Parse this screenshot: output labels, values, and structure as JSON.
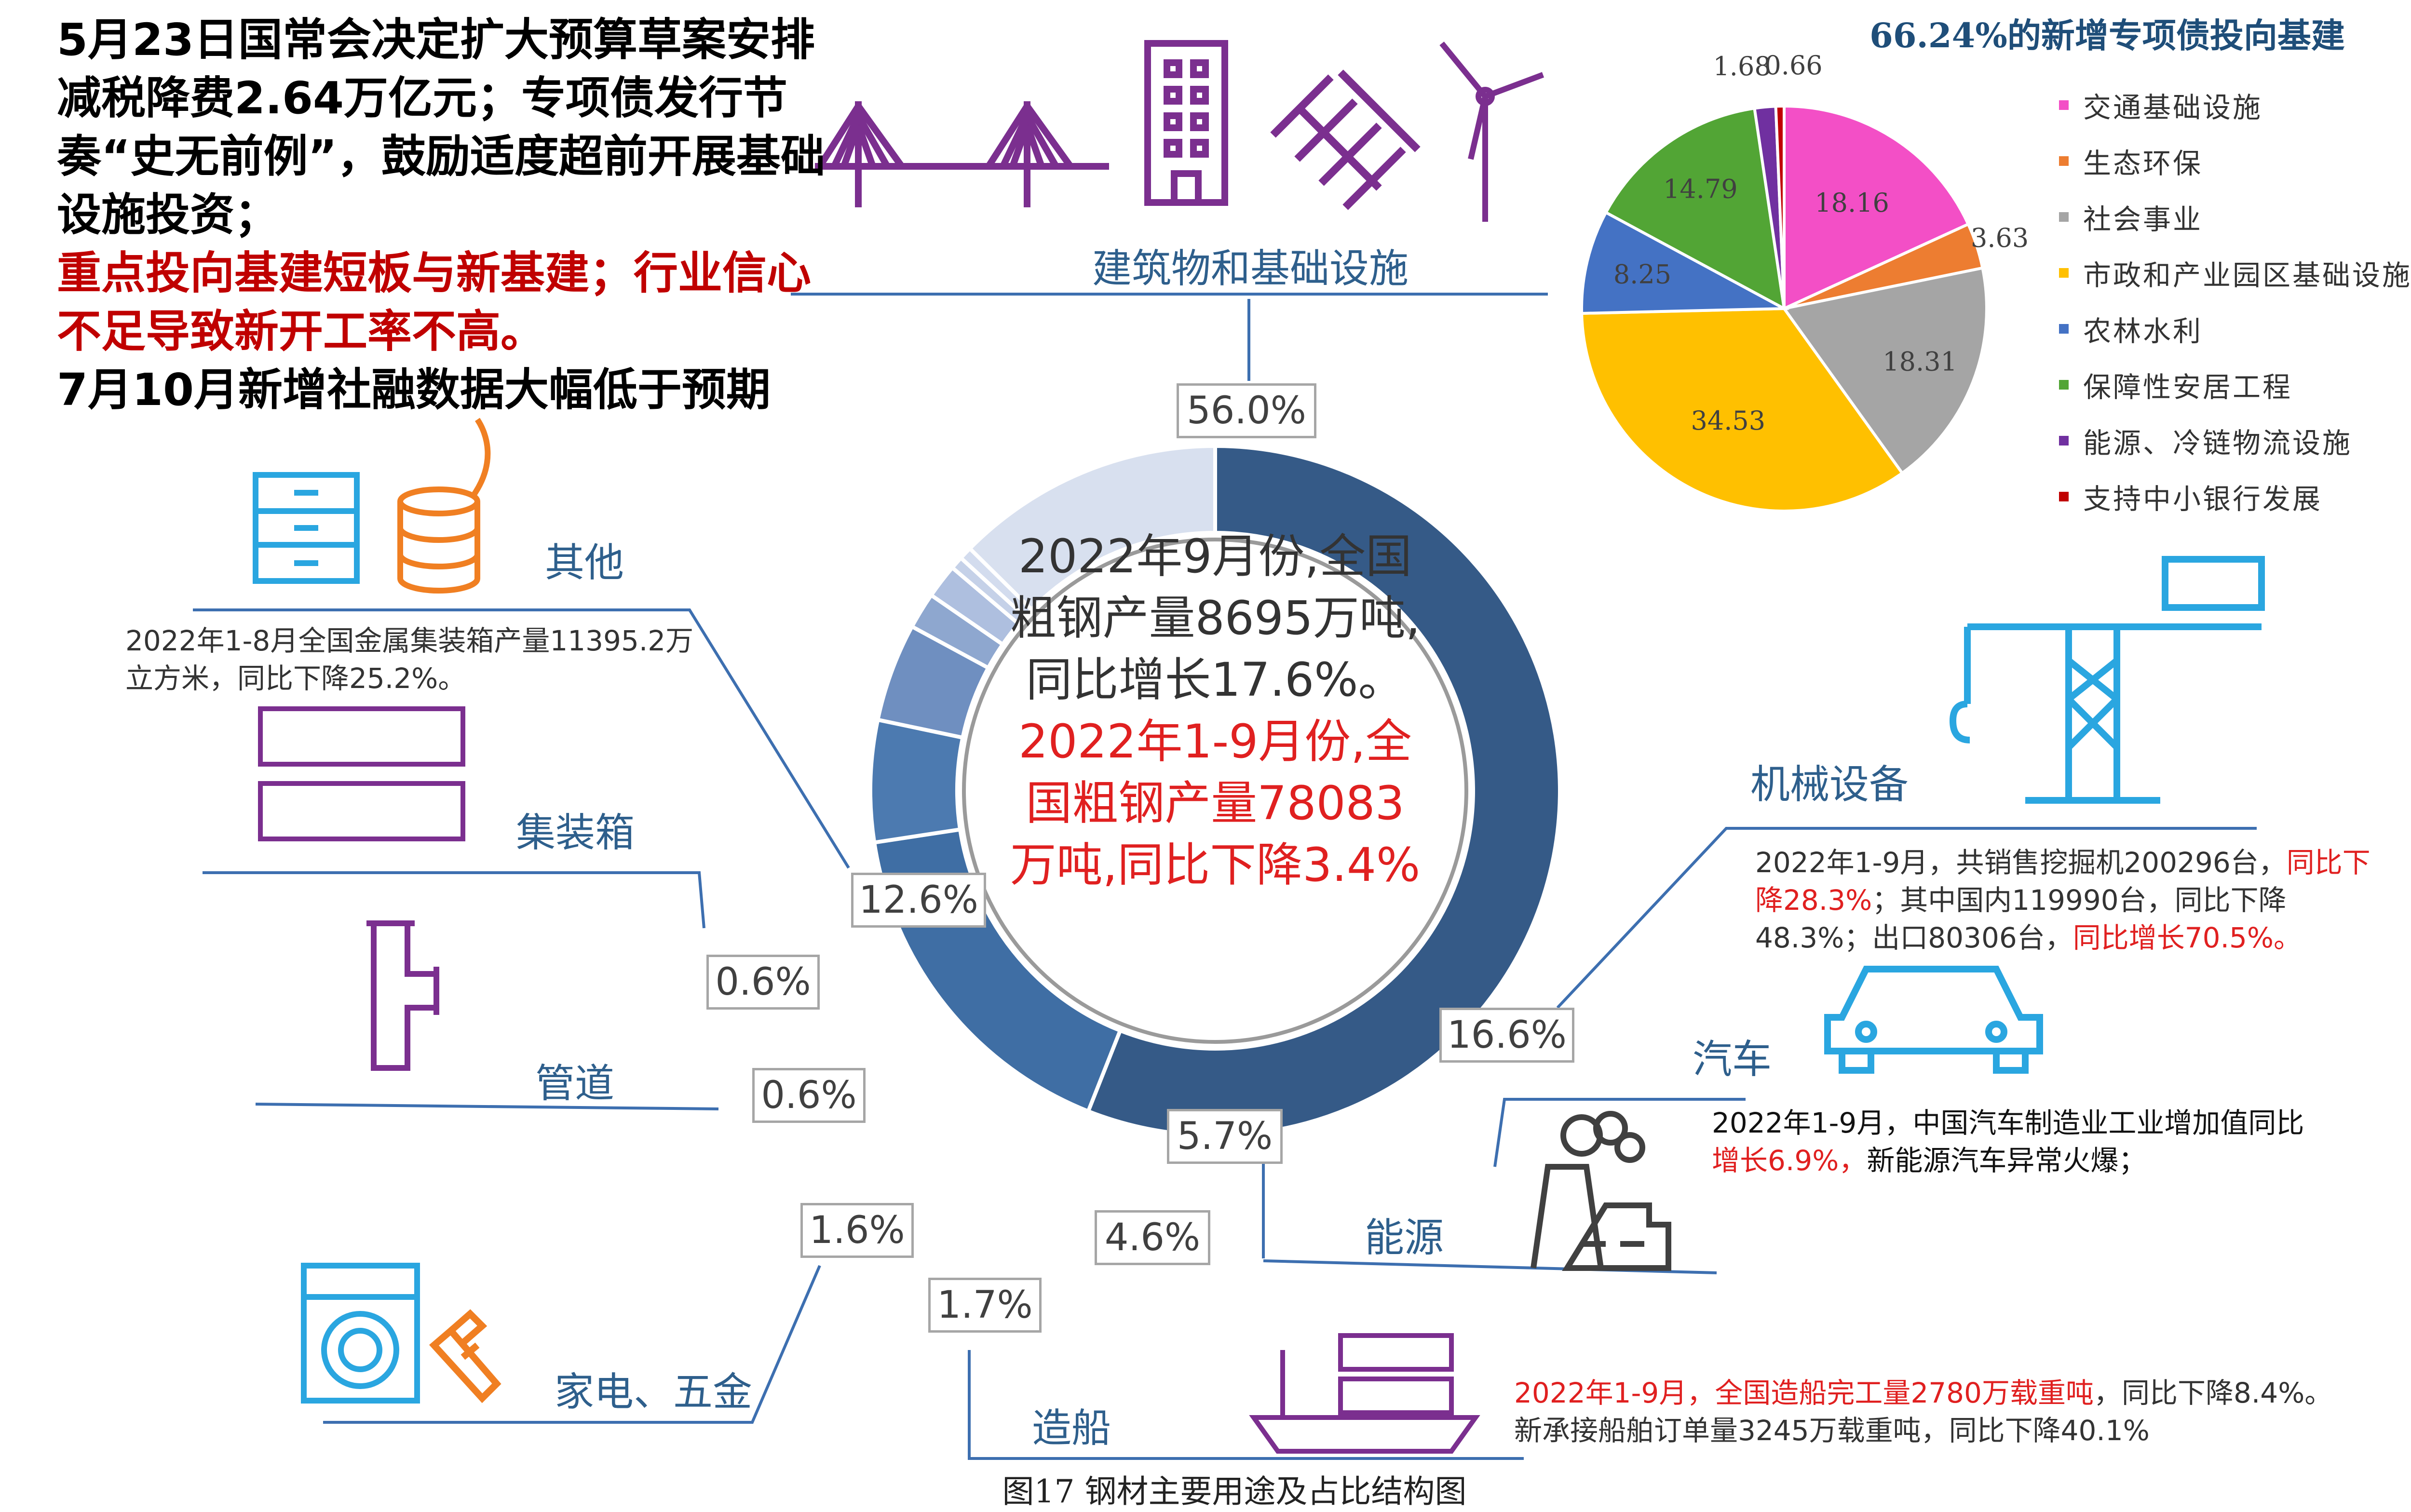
{
  "headline": {
    "black": "5月23日国常会决定扩大预算草案安排减税降费2.64万亿元；专项债发行节奏“史无前例”，鼓励适度超前开展基础设施投资；",
    "red": "重点投向基建短板与新基建；行业信心不足导致新开工率不高。",
    "black2": "7月10月新增社融数据大幅低于预期"
  },
  "pie_title": "66.24%的新增专项债投向基建",
  "center_text": {
    "line_a": "2022年9月份,全国粗钢产量8695万吨,同比增长17.6%。",
    "line_b": "2022年1-9月份,全国粗钢产量78083万吨,同比下降3.4%"
  },
  "categories": {
    "construction": "建筑物和基础设施",
    "machinery": "机械设备",
    "auto": "汽车",
    "energy": "能源",
    "shipbuilding": "造船",
    "appliances": "家电、五金",
    "pipes": "管道",
    "containers": "集装箱",
    "others": "其他"
  },
  "boxes": {
    "construction": "56.0%",
    "machinery": "16.6%",
    "auto": "5.7%",
    "energy": "4.6%",
    "shipbuilding": "1.7%",
    "appliances": "1.6%",
    "pipes": "0.6%",
    "containers": "0.6%",
    "others": "12.6%"
  },
  "notes": {
    "containers_text": "2022年1-8月全国金属集装箱产量11395.2万立方米，同比下降25.2%。",
    "machinery": {
      "p1": "2022年1-9月，共销售挖掘机200296台，",
      "p1r": "同比下降28.3%",
      "p2": "；其中国内119990台，同比下降48.3%；出口80306台，",
      "p2r": "同比增长70.5%。"
    },
    "auto": {
      "p1": "2022年1-9月，中国汽车制造业工业增加值同比",
      "p1r": "增长6.9%，",
      "p2": "新能源汽车异常火爆；"
    },
    "ship": {
      "p1r": "2022年1-9月，全国造船完工量2780万载重吨",
      "p1": "，同比下降8.4%。",
      "p2": "新承接船舶订单量3245万载重吨，同比下降40.1%"
    }
  },
  "caption": "图17 钢材主要用途及占比结构图",
  "colors": {
    "donut": [
      "#355a87",
      "#3f6ea4",
      "#4c7ab0",
      "#6f8fc0",
      "#8ea7cf",
      "#aebfdf",
      "#c5d1e8",
      "#d3dcee",
      "#d8e0ef"
    ],
    "icon_purple": "#7b2f8f",
    "icon_blue": "#2aa6e0",
    "icon_orange": "#f07f22",
    "line": "#3d6fb0"
  },
  "chart_data": [
    {
      "type": "pie",
      "subtype": "donut",
      "categories": [
        "建筑物和基础设施",
        "机械设备",
        "汽车",
        "能源",
        "造船",
        "家电、五金",
        "管道",
        "集装箱",
        "其他"
      ],
      "values": [
        56.0,
        16.6,
        5.7,
        4.6,
        1.7,
        1.6,
        0.6,
        0.6,
        12.6
      ],
      "labels": [
        "56.0%",
        "16.6%",
        "5.7%",
        "4.6%",
        "1.7%",
        "1.6%",
        "0.6%",
        "0.6%",
        "12.6%"
      ],
      "title": "图17 钢材主要用途及占比结构图"
    },
    {
      "type": "pie",
      "title": "66.24%的新增专项债投向基建",
      "categories": [
        "交通基础设施",
        "生态环保",
        "社会事业",
        "市政和产业园区基础设施",
        "农林水利",
        "保障性安居工程",
        "能源、冷链物流设施",
        "支持中小银行发展"
      ],
      "values": [
        18.16,
        3.63,
        18.31,
        34.53,
        8.25,
        14.79,
        1.68,
        0.66
      ],
      "labels": [
        "18.16",
        "3.63",
        "18.31",
        "34.53",
        "8.25",
        "14.79",
        "1.68",
        "0.66"
      ],
      "colors": [
        "#f34fc6",
        "#ed7d31",
        "#a5a5a5",
        "#ffc000",
        "#4472c4",
        "#52a535",
        "#7030a0",
        "#c00000"
      ],
      "legend": "right"
    }
  ]
}
